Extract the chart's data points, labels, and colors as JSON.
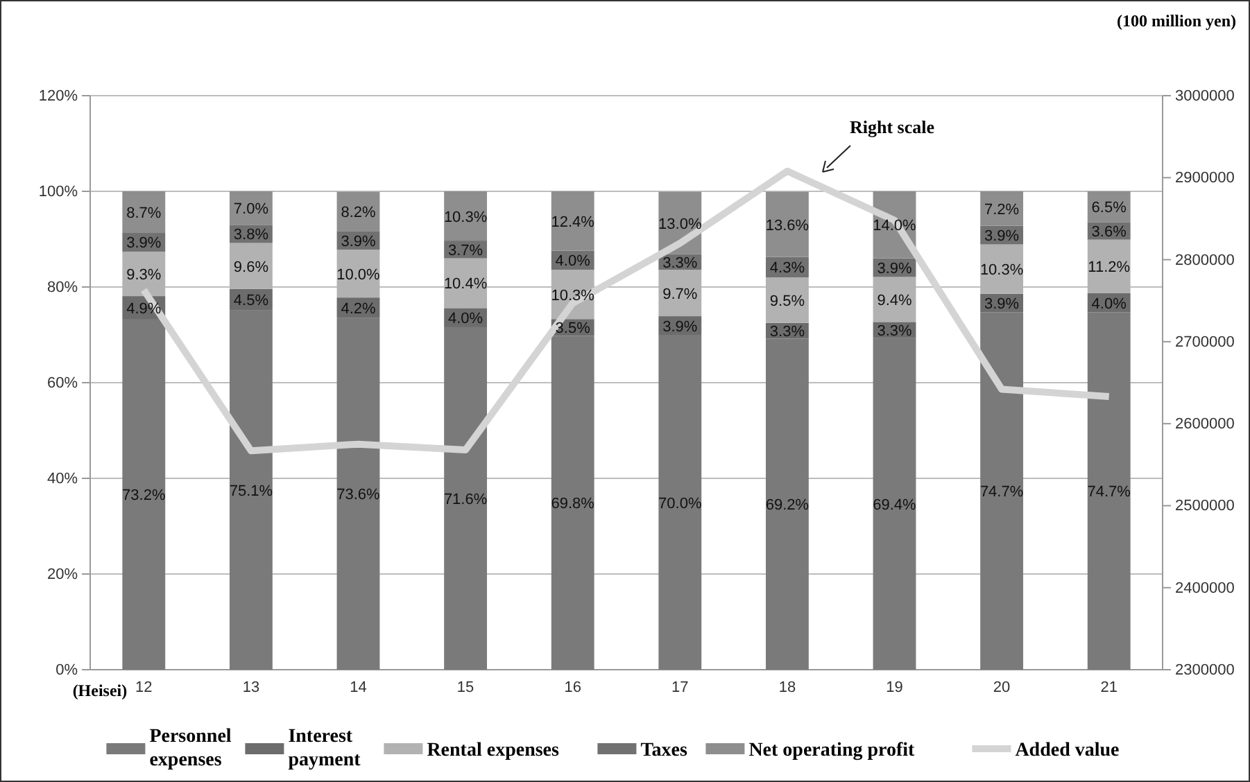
{
  "chart_data": {
    "type": "bar",
    "stacked": true,
    "xlabel": "(Heisei)",
    "y2label": "(100 million yen)",
    "categories": [
      "12",
      "13",
      "14",
      "15",
      "16",
      "17",
      "18",
      "19",
      "20",
      "21"
    ],
    "series": [
      {
        "name": "Personnel expenses",
        "color": "#7a7a7a",
        "values": [
          73.2,
          75.1,
          73.6,
          71.6,
          69.8,
          70.0,
          69.2,
          69.4,
          74.7,
          74.7
        ],
        "value_labels": [
          "73.2%",
          "75.1%",
          "73.6%",
          "71.6%",
          "69.8%",
          "70.0%",
          "69.2%",
          "69.4%",
          "74.7%",
          "74.7%"
        ]
      },
      {
        "name": "Interest payment",
        "color": "#6c6c6c",
        "values": [
          4.9,
          4.5,
          4.2,
          4.0,
          3.5,
          3.9,
          3.3,
          3.3,
          3.9,
          4.0
        ],
        "value_labels": [
          "4.9%",
          "4.5%",
          "4.2%",
          "4.0%",
          "3.5%",
          "3.9%",
          "3.3%",
          "3.3%",
          "3.9%",
          "4.0%"
        ]
      },
      {
        "name": "Rental expenses",
        "color": "#b2b2b2",
        "values": [
          9.3,
          9.6,
          10.0,
          10.4,
          10.3,
          9.7,
          9.5,
          9.4,
          10.3,
          11.2
        ],
        "value_labels": [
          "9.3%",
          "9.6%",
          "10.0%",
          "10.4%",
          "10.3%",
          "9.7%",
          "9.5%",
          "9.4%",
          "10.3%",
          "11.2%"
        ]
      },
      {
        "name": "Taxes",
        "color": "#717171",
        "values": [
          3.9,
          3.8,
          3.9,
          3.7,
          4.0,
          3.3,
          4.3,
          3.9,
          3.9,
          3.6
        ],
        "value_labels": [
          "3.9%",
          "3.8%",
          "3.9%",
          "3.7%",
          "4.0%",
          "3.3%",
          "4.3%",
          "3.9%",
          "3.9%",
          "3.6%"
        ]
      },
      {
        "name": "Net operating profit",
        "color": "#8e8e8e",
        "values": [
          8.7,
          7.0,
          8.2,
          10.3,
          12.4,
          13.0,
          13.6,
          14.0,
          7.2,
          6.5
        ],
        "value_labels": [
          "8.7%",
          "7.0%",
          "8.2%",
          "10.3%",
          "12.4%",
          "13.0%",
          "13.6%",
          "14.0%",
          "7.2%",
          "6.5%"
        ]
      },
      {
        "name": "Added value",
        "type": "line",
        "axis": "y2",
        "color": "#d4d4d4",
        "values": [
          2763000,
          2567000,
          2575000,
          2568000,
          2747000,
          2820000,
          2908000,
          2848000,
          2642000,
          2633000
        ]
      }
    ],
    "ylim": [
      0,
      120
    ],
    "yticks": [
      {
        "value": 0,
        "label": "0%"
      },
      {
        "value": 20,
        "label": "20%"
      },
      {
        "value": 40,
        "label": "40%"
      },
      {
        "value": 60,
        "label": "60%"
      },
      {
        "value": 80,
        "label": "80%"
      },
      {
        "value": 100,
        "label": "100%"
      },
      {
        "value": 120,
        "label": "120%"
      }
    ],
    "y2lim": [
      2300000,
      3000000
    ],
    "y2ticks": [
      2300000,
      2400000,
      2500000,
      2600000,
      2700000,
      2800000,
      2900000,
      3000000
    ],
    "grid": "y",
    "legend": "bottom",
    "marker": "none",
    "annotations": [
      "Right scale"
    ]
  }
}
